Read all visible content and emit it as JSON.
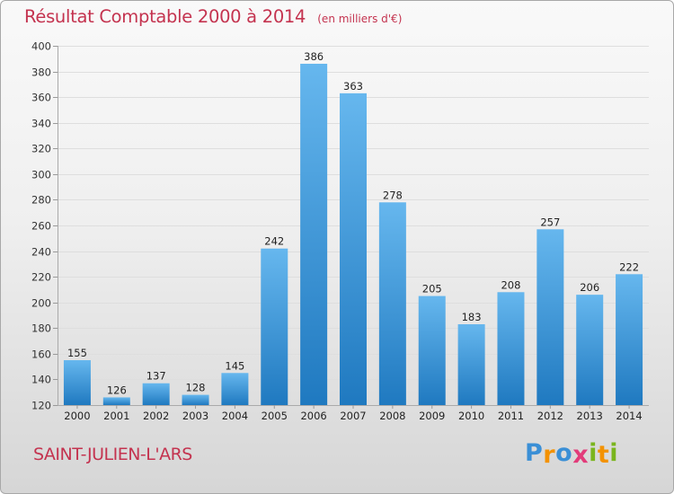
{
  "title": "Résultat Comptable 2000 à 2014",
  "subtitle": "(en milliers d'€)",
  "city": "SAINT-JULIEN-L'ARS",
  "brand": {
    "letters": [
      "P",
      "r",
      "o",
      "x",
      "i",
      "t",
      "i"
    ],
    "colors": [
      "#3a8fd6",
      "#f39200",
      "#3a8fd6",
      "#e23c7a",
      "#7ab51d",
      "#f39200",
      "#7ab51d"
    ]
  },
  "colors": {
    "bar_light": "#66b7ee",
    "bar_dark": "#1f79c0",
    "text_accent": "#c4334f"
  },
  "chart_data": {
    "type": "bar",
    "title": "Résultat Comptable 2000 à 2014",
    "subtitle": "(en milliers d'€)",
    "xlabel": "",
    "ylabel": "",
    "categories": [
      "2000",
      "2001",
      "2002",
      "2003",
      "2004",
      "2005",
      "2006",
      "2007",
      "2008",
      "2009",
      "2010",
      "2011",
      "2012",
      "2013",
      "2014"
    ],
    "values": [
      155,
      126,
      137,
      128,
      145,
      242,
      386,
      363,
      278,
      205,
      183,
      208,
      257,
      206,
      222
    ],
    "ylim": [
      120,
      400
    ],
    "yticks": [
      120,
      140,
      160,
      180,
      200,
      220,
      240,
      260,
      280,
      300,
      320,
      340,
      360,
      380,
      400
    ],
    "grid": true
  }
}
